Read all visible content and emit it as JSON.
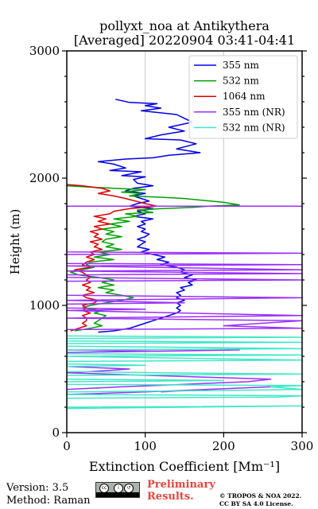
{
  "chart_data": {
    "type": "line",
    "title": "pollyxt_noa at Antikythera",
    "subtitle": "[Averaged] 20220904 03:41-04:41",
    "xlabel": "Extinction Coefficient [Mm⁻¹]",
    "ylabel": "Height (m)",
    "xlim": [
      0,
      300
    ],
    "ylim": [
      0,
      3000
    ],
    "xticks": [
      "0",
      "100",
      "200",
      "300"
    ],
    "yticks": [
      "0",
      "1000",
      "2000",
      "3000"
    ],
    "grid": "vertical",
    "legend_position": "top-right",
    "series": [
      {
        "name": "355 nm",
        "color": "#0000e6",
        "points": [
          [
            62,
            2620
          ],
          [
            80,
            2595
          ],
          [
            115,
            2585
          ],
          [
            100,
            2570
          ],
          [
            120,
            2550
          ],
          [
            95,
            2530
          ],
          [
            140,
            2500
          ],
          [
            150,
            2470
          ],
          [
            160,
            2440
          ],
          [
            130,
            2400
          ],
          [
            150,
            2370
          ],
          [
            120,
            2340
          ],
          [
            100,
            2310
          ],
          [
            145,
            2300
          ],
          [
            165,
            2270
          ],
          [
            140,
            2230
          ],
          [
            170,
            2200
          ],
          [
            130,
            2180
          ],
          [
            110,
            2160
          ],
          [
            75,
            2150
          ],
          [
            40,
            2130
          ],
          [
            60,
            2110
          ],
          [
            75,
            2080
          ],
          [
            55,
            2060
          ],
          [
            95,
            2050
          ],
          [
            70,
            2020
          ],
          [
            100,
            2010
          ],
          [
            85,
            1990
          ],
          [
            90,
            1960
          ],
          [
            110,
            1940
          ],
          [
            85,
            1920
          ],
          [
            75,
            1900
          ],
          [
            100,
            1880
          ],
          [
            85,
            1860
          ],
          [
            95,
            1840
          ],
          [
            105,
            1820
          ],
          [
            90,
            1800
          ],
          [
            80,
            1780
          ],
          [
            110,
            1760
          ],
          [
            90,
            1740
          ],
          [
            100,
            1720
          ],
          [
            85,
            1700
          ],
          [
            110,
            1680
          ],
          [
            95,
            1660
          ],
          [
            100,
            1640
          ],
          [
            90,
            1620
          ],
          [
            100,
            1600
          ],
          [
            95,
            1580
          ],
          [
            105,
            1560
          ],
          [
            100,
            1540
          ],
          [
            90,
            1520
          ],
          [
            100,
            1500
          ],
          [
            95,
            1480
          ],
          [
            90,
            1460
          ],
          [
            105,
            1440
          ],
          [
            95,
            1420
          ],
          [
            110,
            1400
          ],
          [
            125,
            1380
          ],
          [
            115,
            1360
          ],
          [
            130,
            1340
          ],
          [
            120,
            1320
          ],
          [
            140,
            1300
          ],
          [
            150,
            1280
          ],
          [
            145,
            1260
          ],
          [
            160,
            1240
          ],
          [
            150,
            1220
          ],
          [
            165,
            1200
          ],
          [
            155,
            1180
          ],
          [
            160,
            1160
          ],
          [
            145,
            1140
          ],
          [
            150,
            1120
          ],
          [
            140,
            1100
          ],
          [
            145,
            1080
          ],
          [
            140,
            1060
          ],
          [
            150,
            1040
          ],
          [
            140,
            1020
          ],
          [
            145,
            1000
          ],
          [
            140,
            980
          ],
          [
            145,
            960
          ],
          [
            140,
            940
          ],
          [
            130,
            920
          ],
          [
            120,
            900
          ],
          [
            110,
            880
          ],
          [
            100,
            860
          ],
          [
            90,
            840
          ],
          [
            80,
            820
          ],
          [
            60,
            800
          ],
          [
            40,
            790
          ]
        ]
      },
      {
        "name": "532 nm",
        "color": "#00a000",
        "points": [
          [
            0,
            1940
          ],
          [
            30,
            1930
          ],
          [
            60,
            1920
          ],
          [
            100,
            1910
          ],
          [
            70,
            1890
          ],
          [
            95,
            1880
          ],
          [
            80,
            1860
          ],
          [
            120,
            1850
          ],
          [
            150,
            1840
          ],
          [
            200,
            1810
          ],
          [
            220,
            1790
          ],
          [
            180,
            1780
          ],
          [
            160,
            1770
          ],
          [
            120,
            1760
          ],
          [
            90,
            1750
          ],
          [
            110,
            1730
          ],
          [
            75,
            1720
          ],
          [
            90,
            1700
          ],
          [
            60,
            1680
          ],
          [
            80,
            1660
          ],
          [
            55,
            1640
          ],
          [
            70,
            1620
          ],
          [
            45,
            1600
          ],
          [
            60,
            1580
          ],
          [
            50,
            1560
          ],
          [
            70,
            1540
          ],
          [
            50,
            1520
          ],
          [
            45,
            1500
          ],
          [
            60,
            1480
          ],
          [
            50,
            1460
          ],
          [
            70,
            1440
          ],
          [
            40,
            1420
          ],
          [
            55,
            1400
          ],
          [
            35,
            1380
          ],
          [
            60,
            1360
          ],
          [
            30,
            1340
          ],
          [
            25,
            1320
          ],
          [
            35,
            1300
          ],
          [
            20,
            1280
          ],
          [
            5,
            1260
          ],
          [
            15,
            1240
          ],
          [
            40,
            1220
          ],
          [
            60,
            1200
          ],
          [
            45,
            1180
          ],
          [
            60,
            1160
          ],
          [
            40,
            1140
          ],
          [
            60,
            1120
          ],
          [
            50,
            1100
          ],
          [
            70,
            1080
          ],
          [
            85,
            1060
          ],
          [
            70,
            1040
          ],
          [
            50,
            1020
          ],
          [
            30,
            1000
          ],
          [
            20,
            980
          ],
          [
            45,
            960
          ],
          [
            35,
            940
          ],
          [
            50,
            920
          ],
          [
            45,
            900
          ],
          [
            40,
            880
          ],
          [
            35,
            860
          ],
          [
            45,
            840
          ],
          [
            30,
            820
          ],
          [
            10,
            800
          ]
        ]
      },
      {
        "name": "1064 nm",
        "color": "#dd0000",
        "points": [
          [
            0,
            1950
          ],
          [
            20,
            1940
          ],
          [
            45,
            1920
          ],
          [
            55,
            1900
          ],
          [
            40,
            1880
          ],
          [
            60,
            1860
          ],
          [
            75,
            1840
          ],
          [
            100,
            1800
          ],
          [
            115,
            1780
          ],
          [
            80,
            1760
          ],
          [
            60,
            1740
          ],
          [
            55,
            1720
          ],
          [
            35,
            1700
          ],
          [
            50,
            1680
          ],
          [
            40,
            1660
          ],
          [
            55,
            1640
          ],
          [
            35,
            1620
          ],
          [
            45,
            1600
          ],
          [
            30,
            1580
          ],
          [
            40,
            1560
          ],
          [
            35,
            1540
          ],
          [
            45,
            1520
          ],
          [
            30,
            1500
          ],
          [
            40,
            1480
          ],
          [
            35,
            1460
          ],
          [
            45,
            1440
          ],
          [
            30,
            1420
          ],
          [
            35,
            1400
          ],
          [
            25,
            1380
          ],
          [
            35,
            1360
          ],
          [
            25,
            1340
          ],
          [
            20,
            1320
          ],
          [
            30,
            1300
          ],
          [
            10,
            1280
          ],
          [
            20,
            1260
          ],
          [
            25,
            1240
          ],
          [
            30,
            1220
          ],
          [
            25,
            1200
          ],
          [
            30,
            1180
          ],
          [
            20,
            1160
          ],
          [
            30,
            1140
          ],
          [
            25,
            1120
          ],
          [
            35,
            1100
          ],
          [
            20,
            1080
          ],
          [
            25,
            1060
          ],
          [
            40,
            1040
          ],
          [
            35,
            1020
          ],
          [
            20,
            1000
          ],
          [
            25,
            980
          ],
          [
            20,
            960
          ],
          [
            30,
            940
          ],
          [
            20,
            920
          ],
          [
            25,
            900
          ],
          [
            25,
            880
          ],
          [
            20,
            860
          ],
          [
            25,
            840
          ],
          [
            15,
            820
          ],
          [
            5,
            800
          ]
        ]
      },
      {
        "name": "355 nm (NR)",
        "color": "#9b30ff",
        "points": [
          [
            0,
            1780
          ],
          [
            300,
            1780
          ],
          [
            0,
            1780
          ],
          [
            0,
            1420
          ],
          [
            300,
            1410
          ],
          [
            0,
            1400
          ],
          [
            0,
            1330
          ],
          [
            300,
            1320
          ],
          [
            0,
            1310
          ],
          [
            300,
            1280
          ],
          [
            0,
            1270
          ],
          [
            300,
            1250
          ],
          [
            0,
            1240
          ],
          [
            0,
            1220
          ],
          [
            300,
            1200
          ],
          [
            0,
            1190
          ],
          [
            0,
            1080
          ],
          [
            300,
            1060
          ],
          [
            0,
            1040
          ],
          [
            150,
            1020
          ],
          [
            0,
            1010
          ],
          [
            0,
            980
          ],
          [
            100,
            970
          ],
          [
            0,
            960
          ],
          [
            300,
            920
          ],
          [
            0,
            900
          ],
          [
            300,
            880
          ],
          [
            250,
            860
          ],
          [
            200,
            840
          ],
          [
            300,
            820
          ],
          [
            0,
            810
          ],
          [
            0,
            650
          ],
          [
            120,
            640
          ],
          [
            220,
            650
          ],
          [
            0,
            630
          ],
          [
            0,
            560
          ],
          [
            0,
            520
          ],
          [
            40,
            510
          ],
          [
            80,
            500
          ],
          [
            30,
            480
          ],
          [
            0,
            470
          ],
          [
            260,
            420
          ],
          [
            230,
            400
          ],
          [
            150,
            380
          ],
          [
            70,
            360
          ],
          [
            0,
            340
          ],
          [
            0,
            300
          ],
          [
            100,
            320
          ],
          [
            260,
            360
          ],
          [
            180,
            340
          ],
          [
            120,
            320
          ]
        ]
      },
      {
        "name": "532 nm (NR)",
        "color": "#40e8c8",
        "points": [
          [
            0,
            760
          ],
          [
            300,
            750
          ],
          [
            0,
            740
          ],
          [
            0,
            720
          ],
          [
            300,
            710
          ],
          [
            0,
            700
          ],
          [
            0,
            680
          ],
          [
            300,
            660
          ],
          [
            0,
            650
          ],
          [
            0,
            620
          ],
          [
            300,
            610
          ],
          [
            0,
            600
          ],
          [
            300,
            570
          ],
          [
            0,
            560
          ],
          [
            0,
            540
          ],
          [
            100,
            530
          ],
          [
            0,
            520
          ],
          [
            0,
            480
          ],
          [
            120,
            470
          ],
          [
            300,
            460
          ],
          [
            0,
            450
          ],
          [
            0,
            420
          ],
          [
            200,
            410
          ],
          [
            0,
            400
          ],
          [
            0,
            380
          ],
          [
            300,
            370
          ],
          [
            260,
            360
          ],
          [
            300,
            340
          ],
          [
            180,
            330
          ],
          [
            0,
            320
          ],
          [
            0,
            300
          ],
          [
            300,
            290
          ],
          [
            270,
            280
          ],
          [
            0,
            270
          ],
          [
            0,
            200
          ],
          [
            300,
            210
          ],
          [
            0,
            190
          ]
        ]
      }
    ]
  },
  "footer": {
    "version": "Version: 3.5",
    "method": "Method: Raman",
    "preliminary_line1": "Preliminary",
    "preliminary_line2": "Results.",
    "copyright_line1": "© TROPOS & NOA 2022.",
    "copyright_line2": "CC BY SA 4.0 License.",
    "license_badge_text": "BY SA"
  }
}
